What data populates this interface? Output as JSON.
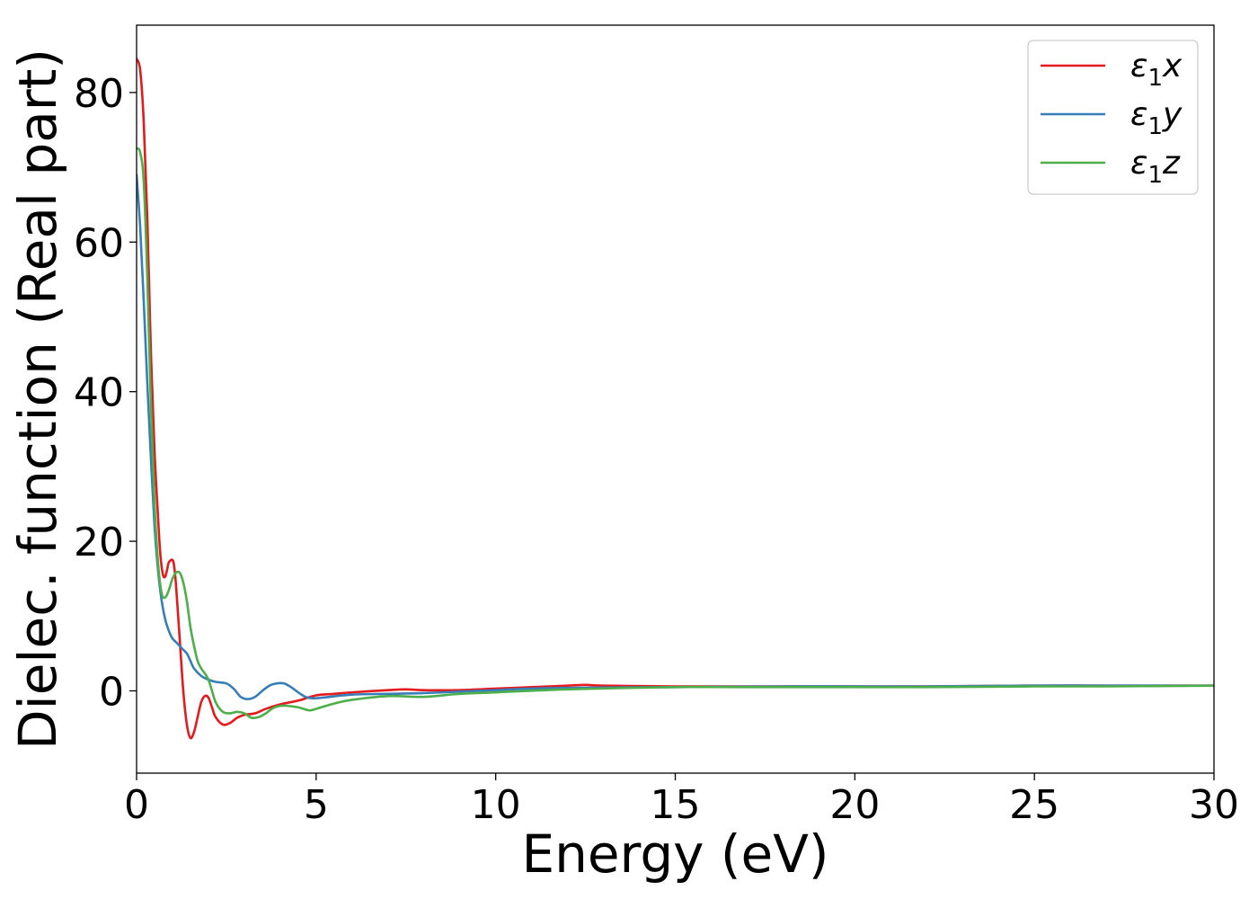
{
  "chart_data": {
    "type": "line",
    "title": "",
    "xlabel": "Energy (eV)",
    "ylabel": "Dielec. function (Real part)",
    "xlim": [
      0,
      30
    ],
    "ylim": [
      -11,
      89
    ],
    "xticks": [
      0,
      5,
      10,
      15,
      20,
      25,
      30
    ],
    "xtick_labels": [
      "0",
      "5",
      "10",
      "15",
      "20",
      "25",
      "30"
    ],
    "yticks": [
      0,
      20,
      40,
      60,
      80
    ],
    "ytick_labels": [
      "0",
      "20",
      "40",
      "60",
      "80"
    ],
    "grid": false,
    "legend_position": "top-right",
    "series": [
      {
        "name": "ε₁x",
        "label_base": "ε",
        "label_sub": "1",
        "label_suffix": "x",
        "color": "#e41a1c",
        "x": [
          0,
          0.1,
          0.2,
          0.3,
          0.4,
          0.5,
          0.6,
          0.65,
          0.7,
          0.75,
          0.8,
          0.85,
          0.9,
          1.0,
          1.05,
          1.1,
          1.2,
          1.3,
          1.4,
          1.5,
          1.6,
          1.7,
          1.8,
          1.9,
          2.0,
          2.1,
          2.2,
          2.4,
          2.6,
          2.8,
          3.0,
          3.3,
          3.6,
          4.0,
          4.5,
          5.0,
          5.5,
          6.0,
          7.0,
          7.5,
          8.0,
          9.0,
          10.0,
          11.0,
          12.0,
          12.5,
          13.0,
          15.0,
          16.0,
          18.0,
          20.0,
          22.0,
          25.0,
          27.0,
          30.0
        ],
        "y": [
          84.5,
          83,
          76,
          63,
          45,
          32,
          23,
          19,
          16.5,
          15.3,
          15.3,
          16.2,
          17.2,
          17.5,
          16.5,
          14,
          7,
          0,
          -4.5,
          -6.3,
          -5.5,
          -3.5,
          -1.5,
          -0.7,
          -0.9,
          -2.2,
          -3.5,
          -4.5,
          -4.3,
          -3.6,
          -3.2,
          -3,
          -2.4,
          -1.8,
          -1.3,
          -0.6,
          -0.4,
          -0.2,
          0.1,
          0.2,
          0.1,
          0.1,
          0.3,
          0.5,
          0.7,
          0.8,
          0.7,
          0.6,
          0.6,
          0.6,
          0.6,
          0.6,
          0.7,
          0.7,
          0.7
        ]
      },
      {
        "name": "ε₁y",
        "label_base": "ε",
        "label_sub": "1",
        "label_suffix": "y",
        "color": "#377eb8",
        "x": [
          0,
          0.1,
          0.2,
          0.3,
          0.4,
          0.5,
          0.6,
          0.7,
          0.8,
          0.9,
          1.0,
          1.1,
          1.2,
          1.3,
          1.4,
          1.5,
          1.6,
          1.8,
          2.0,
          2.2,
          2.5,
          2.7,
          2.9,
          3.1,
          3.3,
          3.5,
          3.7,
          3.9,
          4.1,
          4.3,
          4.5,
          4.7,
          4.9,
          5.2,
          6.0,
          7.0,
          8.0,
          9.0,
          10.0,
          11.0,
          12.0,
          15.0,
          18.0,
          20.0,
          22.0,
          25.0,
          27.0,
          30.0
        ],
        "y": [
          69,
          62,
          52,
          41,
          31,
          22,
          16,
          12,
          9.5,
          8,
          7,
          6.5,
          6,
          5.5,
          5,
          4,
          3,
          2,
          1.5,
          1.2,
          1,
          0.3,
          -0.8,
          -1.1,
          -0.8,
          0,
          0.7,
          1,
          1,
          0.5,
          -0.2,
          -0.8,
          -1,
          -0.9,
          -0.5,
          -0.4,
          -0.3,
          -0.1,
          0.1,
          0.3,
          0.4,
          0.5,
          0.6,
          0.6,
          0.6,
          0.7,
          0.7,
          0.7
        ]
      },
      {
        "name": "ε₁z",
        "label_base": "ε",
        "label_sub": "1",
        "label_suffix": "z",
        "color": "#4daf4a",
        "x": [
          0,
          0.1,
          0.2,
          0.3,
          0.4,
          0.5,
          0.6,
          0.7,
          0.8,
          0.9,
          1.0,
          1.1,
          1.2,
          1.3,
          1.4,
          1.5,
          1.6,
          1.7,
          1.8,
          2.0,
          2.2,
          2.4,
          2.6,
          2.8,
          3.0,
          3.2,
          3.4,
          3.6,
          3.8,
          4.0,
          4.2,
          4.5,
          4.8,
          5.0,
          5.5,
          6.0,
          7.0,
          8.0,
          9.0,
          10.0,
          12.0,
          15.0,
          17.0,
          20.0,
          22.0,
          25.0,
          27.0,
          30.0
        ],
        "y": [
          72.5,
          72,
          68,
          55,
          38,
          25,
          17,
          13,
          12.5,
          13.5,
          15,
          15.8,
          15.8,
          14.5,
          12,
          8.5,
          6,
          4,
          3,
          1.5,
          -1.5,
          -2.8,
          -3,
          -2.8,
          -3,
          -3.6,
          -3.5,
          -3,
          -2.3,
          -2,
          -2,
          -2.2,
          -2.6,
          -2.4,
          -1.7,
          -1.2,
          -0.7,
          -0.8,
          -0.4,
          -0.2,
          0.2,
          0.5,
          0.5,
          0.5,
          0.5,
          0.6,
          0.6,
          0.7
        ]
      }
    ]
  }
}
